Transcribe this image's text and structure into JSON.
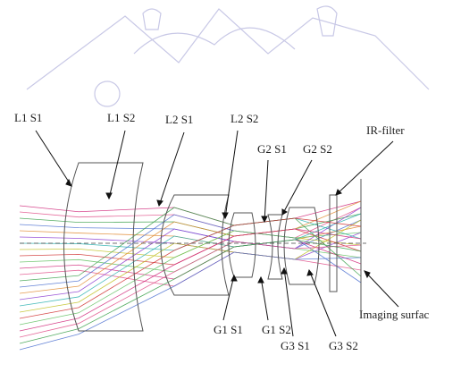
{
  "labels": {
    "l1s1": "L1 S1",
    "l1s2": "L1 S2",
    "l2s1": "L2 S1",
    "l2s2": "L2 S2",
    "g2s1": "G2 S1",
    "g2s2": "G2 S2",
    "ir_filter": "IR-filter",
    "g1s1": "G1 S1",
    "g1s2": "G1 S2",
    "g3s1": "G3 S1",
    "g3s2": "G3 S2",
    "imaging_surface": "Imaging surfac"
  },
  "colors": {
    "lens_outline": "#555555",
    "watermark": "#c8c8e6",
    "ray_palette": [
      "#d0287a",
      "#e0508a",
      "#3aa04a",
      "#4a6fd0",
      "#e08a30",
      "#8a3ad0",
      "#2ab0b0",
      "#c0c020",
      "#d03030",
      "#60c060"
    ]
  },
  "icons": {
    "watermark": "mountain-figures-watermark"
  }
}
